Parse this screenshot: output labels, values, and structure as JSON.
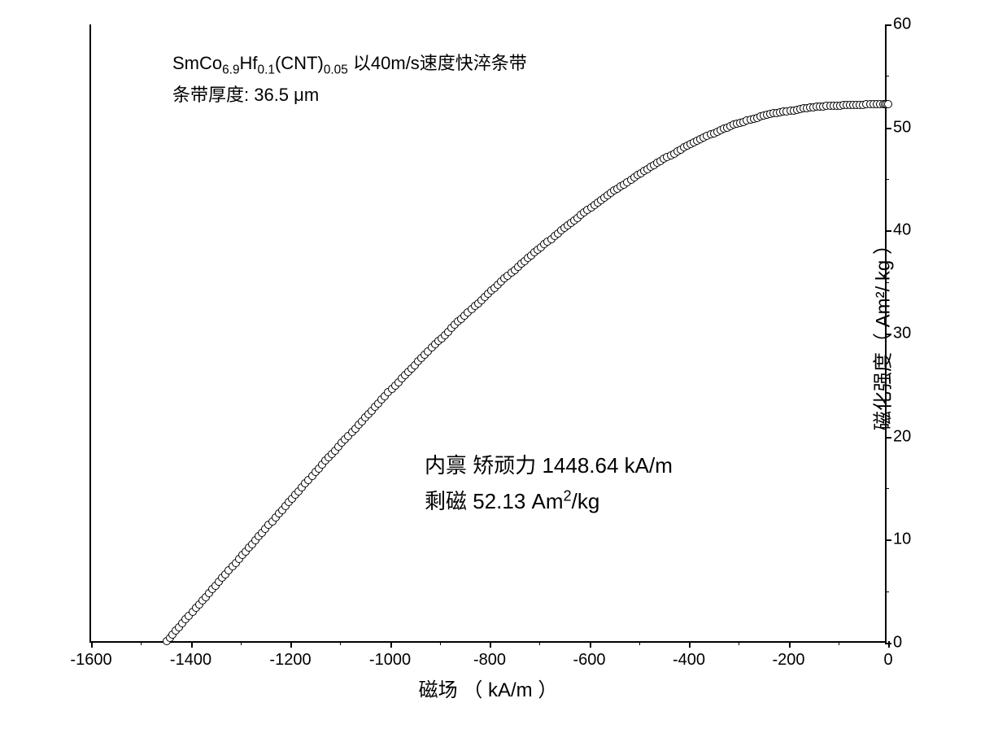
{
  "chart": {
    "type": "scatter-line",
    "background_color": "#ffffff",
    "text_color": "#000000",
    "line_color": "#000000",
    "marker_style": "circle",
    "marker_size": 10,
    "marker_fill": "#ffffff",
    "marker_border": "#000000",
    "marker_border_width": 1.5,
    "x_axis": {
      "label": "磁场 （ kA/m ）",
      "min": -1600,
      "max": 0,
      "tick_step": 200,
      "minor_tick_step": 100,
      "ticks": [
        -1600,
        -1400,
        -1200,
        -1000,
        -800,
        -600,
        -400,
        -200,
        0
      ],
      "label_fontsize": 24,
      "tick_fontsize": 20
    },
    "y_axis": {
      "label": "磁化强度（ Am²/ kg ）",
      "position": "right",
      "min": 0,
      "max": 60,
      "tick_step": 10,
      "minor_tick_step": 5,
      "ticks": [
        0,
        10,
        20,
        30,
        40,
        50,
        60
      ],
      "label_fontsize": 24,
      "tick_fontsize": 20
    },
    "data": {
      "x": [
        -1448.64,
        -1430,
        -1410,
        -1390,
        -1370,
        -1350,
        -1330,
        -1310,
        -1290,
        -1270,
        -1250,
        -1230,
        -1210,
        -1190,
        -1170,
        -1150,
        -1130,
        -1110,
        -1090,
        -1070,
        -1050,
        -1030,
        -1010,
        -990,
        -970,
        -950,
        -930,
        -910,
        -890,
        -870,
        -850,
        -830,
        -810,
        -790,
        -770,
        -750,
        -730,
        -710,
        -690,
        -670,
        -650,
        -630,
        -610,
        -590,
        -570,
        -550,
        -530,
        -510,
        -490,
        -470,
        -450,
        -430,
        -410,
        -390,
        -370,
        -350,
        -330,
        -310,
        -290,
        -270,
        -250,
        -230,
        -210,
        -190,
        -170,
        -150,
        -130,
        -110,
        -90,
        -70,
        -50,
        -30,
        -10,
        0
      ],
      "y": [
        0,
        1.0,
        2.1,
        3.2,
        4.3,
        5.4,
        6.5,
        7.6,
        8.7,
        9.8,
        10.9,
        12.0,
        13.1,
        14.2,
        15.3,
        16.4,
        17.5,
        18.5,
        19.6,
        20.6,
        21.7,
        22.7,
        23.8,
        24.8,
        25.8,
        26.8,
        27.8,
        28.8,
        29.7,
        30.7,
        31.6,
        32.5,
        33.4,
        34.3,
        35.2,
        36.0,
        36.9,
        37.7,
        38.5,
        39.3,
        40.1,
        40.8,
        41.6,
        42.3,
        43.0,
        43.7,
        44.3,
        45.0,
        45.6,
        46.2,
        46.8,
        47.3,
        47.9,
        48.4,
        48.9,
        49.3,
        49.7,
        50.1,
        50.4,
        50.7,
        51.0,
        51.2,
        51.4,
        51.5,
        51.7,
        51.8,
        51.9,
        51.95,
        52.0,
        52.03,
        52.06,
        52.09,
        52.12,
        52.13
      ]
    },
    "annotations": {
      "top": {
        "line1_prefix": "SmCo",
        "line1_sub1": "6.9",
        "line1_mid1": "Hf",
        "line1_sub2": "0.1",
        "line1_mid2": "(CNT)",
        "line1_sub3": "0.05",
        "line1_suffix": " 以40m/s速度快淬条带",
        "line2": "条带厚度: 36.5 μm",
        "fontsize": 22
      },
      "mid": {
        "line1": "内禀 矫顽力  1448.64 kA/m",
        "line2_prefix": "剩磁 52.13 Am",
        "line2_sup": "2",
        "line2_suffix": "/kg",
        "fontsize": 26
      }
    }
  }
}
